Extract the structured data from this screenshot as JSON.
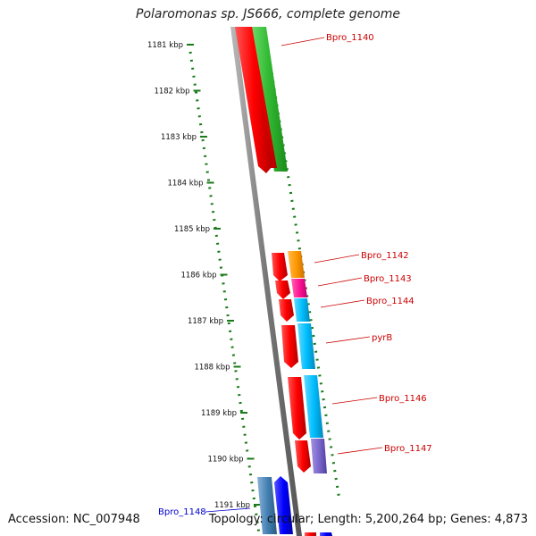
{
  "title": "Polaromonas sp. JS666, complete genome",
  "footer": {
    "accession": "Accession: NC_007948",
    "summary": "Topology: circular; Length: 5,200,264 bp; Genes: 4,873"
  },
  "ruler": {
    "ticks": [
      "1181 kbp",
      "1182 kbp",
      "1183 kbp",
      "1184 kbp",
      "1185 kbp",
      "1186 kbp",
      "1187 kbp",
      "1188 kbp",
      "1189 kbp",
      "1190 kbp",
      "1191 kbp"
    ],
    "color": "#1a7a1a"
  },
  "genes": [
    {
      "label": "Bpro_1140",
      "color": "#cc0000",
      "strand": "forward-green"
    },
    {
      "label": "Bpro_1142",
      "color": "#cc0000",
      "strand": "reverse"
    },
    {
      "label": "Bpro_1143",
      "color": "#cc0000",
      "strand": "reverse"
    },
    {
      "label": "Bpro_1144",
      "color": "#cc0000",
      "strand": "reverse"
    },
    {
      "label": "pyrB",
      "color": "#cc0000",
      "strand": "reverse"
    },
    {
      "label": "Bpro_1146",
      "color": "#cc0000",
      "strand": "reverse"
    },
    {
      "label": "Bpro_1147",
      "color": "#cc0000",
      "strand": "reverse"
    },
    {
      "label": "Bpro_1148",
      "color": "#0000cc",
      "strand": "forward"
    }
  ],
  "colors": {
    "backbone": "#888888",
    "red": "#ff0000",
    "green": "#33cc33",
    "orange": "#ff9900",
    "magenta": "#ff1493",
    "cyan": "#00bfff",
    "purple": "#7b68cc",
    "blue": "#0000ff",
    "steelblue": "#4682b4"
  }
}
